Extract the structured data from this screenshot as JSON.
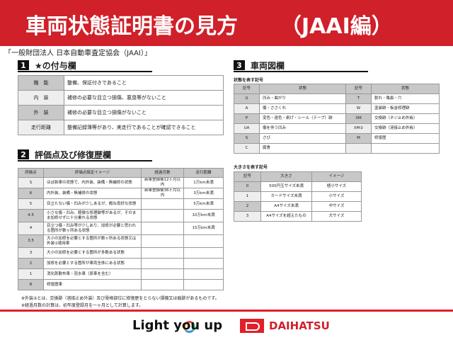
{
  "header": {
    "title": "車両状態証明書の見方",
    "subtitle": "（JAAI編）"
  },
  "organization": "「一般財団法人 日本自動車査定協会（JAAI）」",
  "section1": {
    "num": "1",
    "title": "★の付与欄",
    "rows": [
      {
        "k": "機　能",
        "v": "整備、保証付きであること"
      },
      {
        "k": "内　装",
        "v": "補修の必要な目立つ損傷、悪臭等がないこと"
      },
      {
        "k": "外　装",
        "v": "補修の必要な目立つ損傷がないこと"
      },
      {
        "k": "走行距離",
        "v": "整備記録簿等があり、実走行であることが確認できること"
      }
    ]
  },
  "section2": {
    "num": "2",
    "title": "評価点及び修復歴欄",
    "headers": [
      "評価点",
      "評価点設定イメージ",
      "経過月数",
      "走行距離"
    ],
    "rows": [
      [
        "S",
        "ほぼ新車の状態で、内外装、装備・無補修の状態",
        "新車登録後12ヶ月以内",
        "1万km未満"
      ],
      [
        "6",
        "内外装、装備・無補修の状態",
        "新車登録後36ヶ月以内",
        "3万km未満"
      ],
      [
        "5",
        "目立たない傷・凹みが少しあるが、概ね良好な状態",
        "",
        "5万km未満"
      ],
      [
        "4.5",
        "小さな傷・凹み、軽微な修理跡等があるが、そのまま加修せずに十分乗れる状態",
        "",
        "10万km未満"
      ],
      [
        "4",
        "目立つ傷・凹み等が少しあり、加修が必要と思われる箇所が数ヶ所ある状態",
        "",
        "15万km未満"
      ],
      [
        "3.5",
        "大小の加修を必要とする箇所が数ヶ所ある状態又は外装②適用車",
        "",
        ""
      ],
      [
        "3",
        "大小の加修を必要とする箇所が多数ある状態",
        "",
        ""
      ],
      [
        "2",
        "加修を必要とする箇所が車両全体にある状態",
        "",
        ""
      ],
      [
        "1",
        "消化剤散布車・冠水車（原車を含む）",
        "",
        ""
      ],
      [
        "R",
        "修復歴車",
        "",
        ""
      ]
    ]
  },
  "section3": {
    "num": "3",
    "title": "車両図欄",
    "condition_label": "状態を表す記号",
    "condition_headers": [
      "記号",
      "状態",
      "記号",
      "状態"
    ],
    "condition_rows": [
      [
        "U",
        "凹み・曲がり",
        "T",
        "割れ・亀裂・穴"
      ],
      [
        "A",
        "傷・ささくれ",
        "W",
        "塗装跡・板金修理跡"
      ],
      [
        "P",
        "変色・退色・剥げ・シール（テープ）跡",
        "XM",
        "交換跡（ネジ止め外板）"
      ],
      [
        "UA",
        "傷を伴う凹み",
        "XM②",
        "交換跡（溶接止め外板）"
      ],
      [
        "S",
        "さび",
        "M",
        "修復歴"
      ],
      [
        "C",
        "腐食",
        "",
        ""
      ]
    ],
    "size_label": "大きさを表す記号",
    "size_headers": [
      "記号",
      "大きさ",
      "イメージ"
    ],
    "size_rows": [
      [
        "0",
        "500円玉サイズ未満",
        "極小サイズ"
      ],
      [
        "1",
        "カードサイズ未満",
        "小サイズ"
      ],
      [
        "2",
        "A4サイズ未満",
        "中サイズ"
      ],
      [
        "3",
        "A4サイズを超えたもの",
        "大サイズ"
      ]
    ]
  },
  "notes": [
    "※外装②とは、交換跡（溶接止め外装）及び骨格部位に修復歴をとらない損傷又は痕跡があるものです。",
    "※経過月数の計算は、初年度登録月を一ヶ月として計算します。"
  ],
  "footer": {
    "slogan": "Light you up",
    "brand": "DAIHATSU",
    "accent": "#d0202a"
  }
}
